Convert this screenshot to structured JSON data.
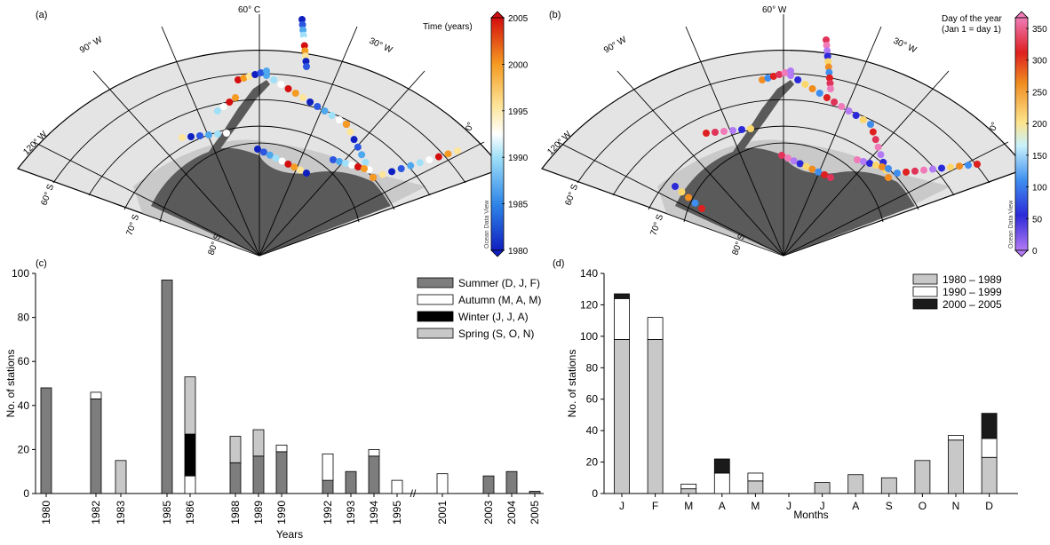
{
  "panels": {
    "a": {
      "label": "(a)",
      "colorbar_title": "Time (years)",
      "colorbar_ticks": [
        "2005",
        "2000",
        "1995",
        "1990",
        "1985",
        "1980"
      ],
      "watermark": "Ocean Data View",
      "lon_labels": [
        "120° W",
        "90° W",
        "60° C",
        "30° W",
        "0°"
      ],
      "lat_labels": [
        "60° S",
        "70° S",
        "80° S"
      ]
    },
    "b": {
      "label": "(b)",
      "colorbar_title_1": "Day of the year",
      "colorbar_title_2": "(Jan 1 = day 1)",
      "colorbar_ticks": [
        "350",
        "300",
        "250",
        "200",
        "150",
        "100",
        "50",
        "0"
      ],
      "watermark": "Ocean Data View",
      "lon_labels": [
        "120° W",
        "90° W",
        "60° W",
        "30° W",
        "0°"
      ],
      "lat_labels": [
        "60° S",
        "70° S",
        "80° S"
      ]
    },
    "c": {
      "label": "(c)"
    },
    "d": {
      "label": "(d)"
    }
  },
  "chart_data": [
    {
      "type": "bar",
      "stacked": true,
      "xlabel": "Years",
      "ylabel": "No. of stations",
      "ylim": [
        0,
        100
      ],
      "yticks": [
        0,
        20,
        40,
        60,
        80,
        100
      ],
      "axis_break_label": "//",
      "categories": [
        "1980",
        "1982",
        "1983",
        "1985",
        "1986",
        "1988",
        "1989",
        "1990",
        "1992",
        "1993",
        "1994",
        "1995",
        "2001",
        "2003",
        "2004",
        "2005"
      ],
      "series": [
        {
          "name": "Summer (D, J, F)",
          "color": "#7d7d7d",
          "values": [
            48,
            43,
            0,
            97,
            0,
            14,
            17,
            19,
            6,
            10,
            17,
            0,
            0,
            8,
            10,
            1
          ]
        },
        {
          "name": "Autumn (M, A, M)",
          "color": "#ffffff",
          "values": [
            0,
            3,
            0,
            0,
            8,
            0,
            0,
            3,
            12,
            0,
            3,
            6,
            9,
            0,
            0,
            0
          ]
        },
        {
          "name": "Winter (J, J, A)",
          "color": "#000000",
          "values": [
            0,
            0,
            0,
            0,
            19,
            0,
            0,
            0,
            0,
            0,
            0,
            0,
            0,
            0,
            0,
            0
          ]
        },
        {
          "name": "Spring (S, O, N)",
          "color": "#c8c8c8",
          "values": [
            0,
            0,
            15,
            0,
            26,
            12,
            12,
            0,
            0,
            0,
            0,
            0,
            0,
            0,
            0,
            0
          ]
        }
      ],
      "legend_position": "top-right"
    },
    {
      "type": "bar",
      "stacked": true,
      "xlabel": "Months",
      "ylabel": "No. of stations",
      "ylim": [
        0,
        140
      ],
      "yticks": [
        0,
        20,
        40,
        60,
        80,
        100,
        120,
        140
      ],
      "categories": [
        "J",
        "F",
        "M",
        "A",
        "M",
        "J",
        "J",
        "A",
        "S",
        "O",
        "N",
        "D"
      ],
      "series": [
        {
          "name": "1980 – 1989",
          "color": "#c8c8c8",
          "values": [
            98,
            98,
            3,
            0,
            8,
            0,
            7,
            12,
            10,
            21,
            34,
            23
          ]
        },
        {
          "name": "1990 – 1999",
          "color": "#ffffff",
          "values": [
            26,
            14,
            3,
            13,
            5,
            0,
            0,
            0,
            0,
            0,
            3,
            12
          ]
        },
        {
          "name": "2000 – 2005",
          "color": "#1a1a1a",
          "values": [
            3,
            0,
            0,
            9,
            0,
            0,
            0,
            0,
            0,
            0,
            0,
            16
          ]
        }
      ],
      "legend_position": "top-right"
    }
  ]
}
